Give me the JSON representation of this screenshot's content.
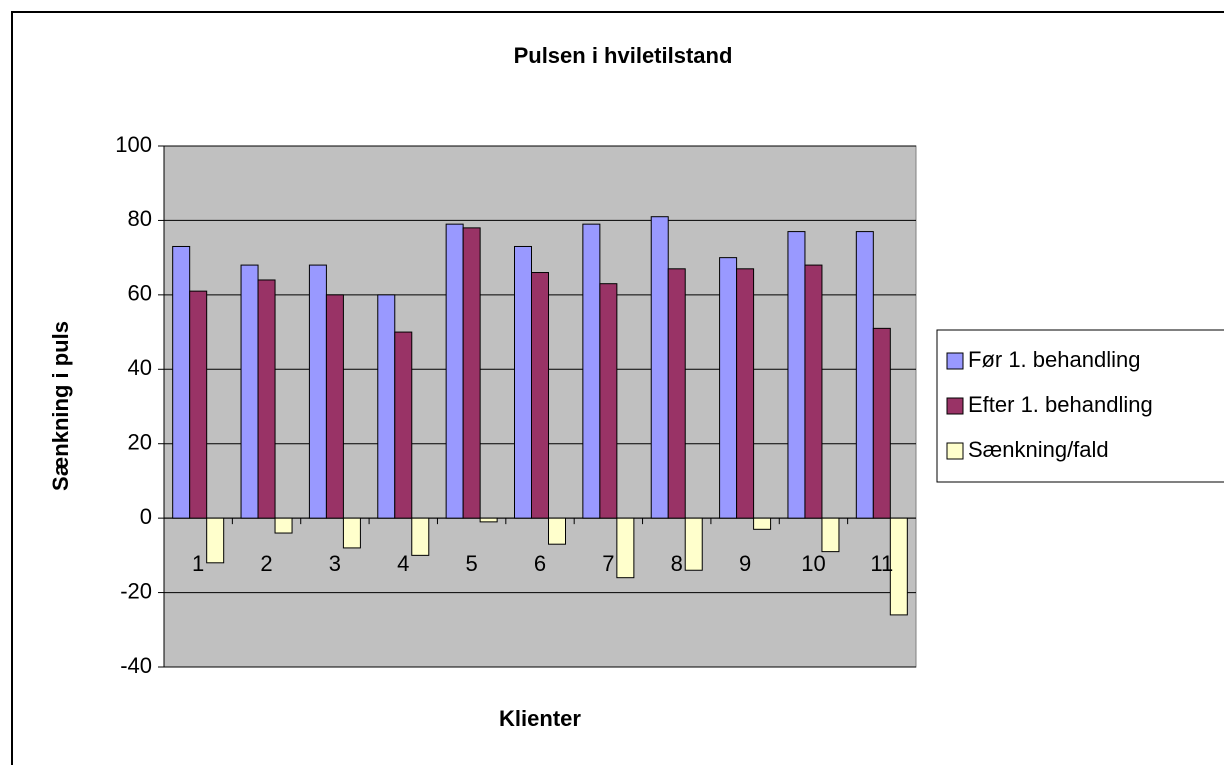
{
  "chart_data": {
    "type": "bar",
    "title": "Pulsen i hviletilstand",
    "x_label": "Klienter",
    "y_label": "Sænkning i puls",
    "categories": [
      "1",
      "2",
      "3",
      "4",
      "5",
      "6",
      "7",
      "8",
      "9",
      "10",
      "11"
    ],
    "series": [
      {
        "name": "Før 1. behandling",
        "color": "#9999ff",
        "values": [
          73,
          68,
          68,
          60,
          79,
          73,
          79,
          81,
          70,
          77,
          77
        ]
      },
      {
        "name": "Efter 1. behandling",
        "color": "#993366",
        "values": [
          61,
          64,
          60,
          50,
          78,
          66,
          63,
          67,
          67,
          68,
          51
        ]
      },
      {
        "name": "Sænkning/fald",
        "color": "#ffffcc",
        "values": [
          -12,
          -4,
          -8,
          -10,
          -1,
          -7,
          -16,
          -14,
          -3,
          -9,
          -26
        ]
      }
    ],
    "ylim": [
      -40,
      100
    ],
    "yticks": [
      -40,
      -20,
      0,
      20,
      40,
      60,
      80,
      100
    ],
    "grid": true,
    "legend": "right"
  }
}
